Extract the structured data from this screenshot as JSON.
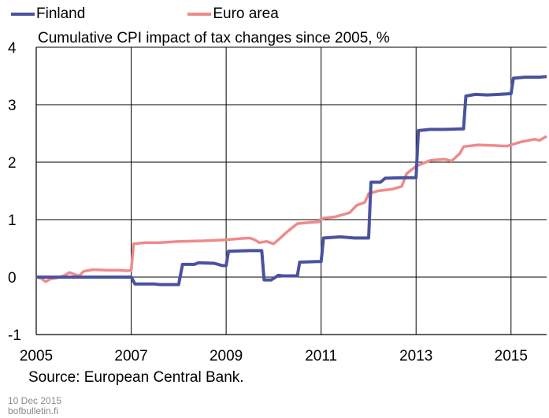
{
  "chart_data": {
    "type": "line",
    "subtitle": "Cumulative CPI impact of tax changes since 2005, %",
    "x_ticks": [
      "2005",
      "2007",
      "2009",
      "2011",
      "2013",
      "2015"
    ],
    "y_ticks": [
      "4",
      "3",
      "2",
      "1",
      "0",
      "-1"
    ],
    "ylim": [
      -1,
      4
    ],
    "xlim": [
      2005.0,
      2015.75
    ],
    "grid": true,
    "legend_position": "top-left",
    "series": [
      {
        "name": "Finland",
        "color": "#4a52a0",
        "points": [
          [
            2005.0,
            0.0
          ],
          [
            2007.0,
            0.0
          ],
          [
            2007.08,
            -0.12
          ],
          [
            2007.5,
            -0.12
          ],
          [
            2007.6,
            -0.13
          ],
          [
            2008.0,
            -0.13
          ],
          [
            2008.08,
            0.22
          ],
          [
            2008.33,
            0.22
          ],
          [
            2008.42,
            0.25
          ],
          [
            2008.75,
            0.24
          ],
          [
            2008.92,
            0.2
          ],
          [
            2009.0,
            0.2
          ],
          [
            2009.05,
            0.45
          ],
          [
            2009.5,
            0.46
          ],
          [
            2009.75,
            0.46
          ],
          [
            2009.8,
            -0.05
          ],
          [
            2009.95,
            -0.05
          ],
          [
            2010.1,
            0.03
          ],
          [
            2010.2,
            0.02
          ],
          [
            2010.5,
            0.02
          ],
          [
            2010.55,
            0.26
          ],
          [
            2010.92,
            0.27
          ],
          [
            2011.0,
            0.27
          ],
          [
            2011.05,
            0.68
          ],
          [
            2011.4,
            0.7
          ],
          [
            2011.7,
            0.68
          ],
          [
            2011.92,
            0.68
          ],
          [
            2012.0,
            0.68
          ],
          [
            2012.05,
            1.65
          ],
          [
            2012.25,
            1.65
          ],
          [
            2012.35,
            1.72
          ],
          [
            2012.75,
            1.73
          ],
          [
            2012.92,
            1.73
          ],
          [
            2013.0,
            1.73
          ],
          [
            2013.05,
            2.55
          ],
          [
            2013.3,
            2.57
          ],
          [
            2013.6,
            2.57
          ],
          [
            2013.92,
            2.58
          ],
          [
            2014.0,
            2.58
          ],
          [
            2014.05,
            3.15
          ],
          [
            2014.25,
            3.18
          ],
          [
            2014.5,
            3.17
          ],
          [
            2014.75,
            3.18
          ],
          [
            2014.95,
            3.19
          ],
          [
            2015.0,
            3.19
          ],
          [
            2015.05,
            3.46
          ],
          [
            2015.3,
            3.48
          ],
          [
            2015.6,
            3.48
          ],
          [
            2015.75,
            3.49
          ]
        ]
      },
      {
        "name": "Euro area",
        "color": "#f08a8a",
        "points": [
          [
            2005.0,
            0.0
          ],
          [
            2005.1,
            -0.02
          ],
          [
            2005.2,
            -0.08
          ],
          [
            2005.3,
            -0.03
          ],
          [
            2005.4,
            -0.02
          ],
          [
            2005.5,
            0.0
          ],
          [
            2005.6,
            0.03
          ],
          [
            2005.7,
            0.08
          ],
          [
            2005.8,
            0.05
          ],
          [
            2005.9,
            0.02
          ],
          [
            2006.0,
            0.1
          ],
          [
            2006.2,
            0.13
          ],
          [
            2006.5,
            0.12
          ],
          [
            2006.75,
            0.12
          ],
          [
            2006.92,
            0.11
          ],
          [
            2007.0,
            0.12
          ],
          [
            2007.05,
            0.58
          ],
          [
            2007.3,
            0.6
          ],
          [
            2007.6,
            0.6
          ],
          [
            2008.0,
            0.62
          ],
          [
            2008.5,
            0.63
          ],
          [
            2009.0,
            0.65
          ],
          [
            2009.3,
            0.67
          ],
          [
            2009.5,
            0.68
          ],
          [
            2009.6,
            0.65
          ],
          [
            2009.7,
            0.6
          ],
          [
            2009.85,
            0.62
          ],
          [
            2010.0,
            0.58
          ],
          [
            2010.1,
            0.65
          ],
          [
            2010.3,
            0.8
          ],
          [
            2010.5,
            0.93
          ],
          [
            2010.75,
            0.95
          ],
          [
            2010.95,
            0.96
          ],
          [
            2011.0,
            1.02
          ],
          [
            2011.3,
            1.05
          ],
          [
            2011.6,
            1.12
          ],
          [
            2011.75,
            1.25
          ],
          [
            2011.92,
            1.3
          ],
          [
            2012.0,
            1.45
          ],
          [
            2012.2,
            1.5
          ],
          [
            2012.5,
            1.53
          ],
          [
            2012.7,
            1.58
          ],
          [
            2012.8,
            1.8
          ],
          [
            2013.0,
            1.93
          ],
          [
            2013.3,
            2.03
          ],
          [
            2013.6,
            2.05
          ],
          [
            2013.75,
            2.02
          ],
          [
            2013.92,
            2.15
          ],
          [
            2014.0,
            2.27
          ],
          [
            2014.3,
            2.3
          ],
          [
            2014.6,
            2.29
          ],
          [
            2014.92,
            2.28
          ],
          [
            2015.0,
            2.3
          ],
          [
            2015.2,
            2.35
          ],
          [
            2015.5,
            2.4
          ],
          [
            2015.6,
            2.38
          ],
          [
            2015.75,
            2.45
          ]
        ]
      }
    ]
  },
  "source": "Source: European Central Bank.",
  "footer": {
    "date": "10 Dec 2015",
    "site": "bofbulletin.fi"
  }
}
